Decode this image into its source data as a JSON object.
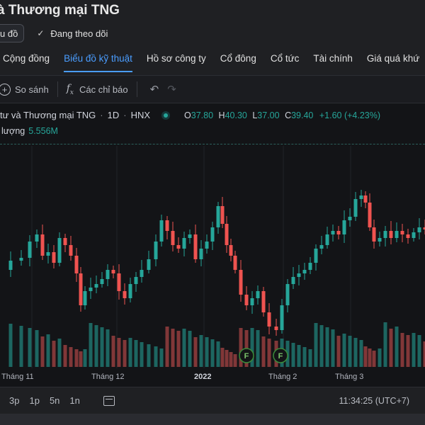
{
  "header": {
    "title": "à Thương mại TNG"
  },
  "actions": {
    "chart_chip": "u đồ",
    "follow_label": "Đang theo dõi"
  },
  "tabs": [
    {
      "label": "Cộng đồng",
      "active": false
    },
    {
      "label": "Biểu đồ kỹ thuật",
      "active": true
    },
    {
      "label": "Hồ sơ công ty",
      "active": false
    },
    {
      "label": "Cổ đông",
      "active": false
    },
    {
      "label": "Cổ tức",
      "active": false
    },
    {
      "label": "Tài chính",
      "active": false
    },
    {
      "label": "Giá quá khứ",
      "active": false
    }
  ],
  "toolbar": {
    "compare_label": "So sánh",
    "indicators_label": "Các chỉ báo"
  },
  "legend": {
    "symbol_name": "tư và Thương mại TNG",
    "interval": "1D",
    "exchange": "HNX",
    "o_label": "O",
    "o_value": "37.80",
    "h_label": "H",
    "h_value": "40.30",
    "l_label": "L",
    "l_value": "37.00",
    "c_label": "C",
    "c_value": "39.40",
    "change": "+1.60 (+4.23%)",
    "volume_label": "lượng",
    "volume_value": "5.556M"
  },
  "markers": [
    {
      "label": "F"
    },
    {
      "label": "F"
    }
  ],
  "x_axis": [
    {
      "label": "Tháng 11",
      "bold": false
    },
    {
      "label": "Tháng 12",
      "bold": false
    },
    {
      "label": "2022",
      "bold": true
    },
    {
      "label": "Tháng 2",
      "bold": false
    },
    {
      "label": "Tháng 3",
      "bold": false
    }
  ],
  "ranges": [
    "3p",
    "1p",
    "5n",
    "1n"
  ],
  "clock": "11:34:25 (UTC+7)",
  "colors": {
    "up": "#26a69a",
    "down": "#ef5350",
    "up_vol": "#1f6f69",
    "down_vol": "#8e3b3c",
    "accent": "#4a9dff"
  }
}
